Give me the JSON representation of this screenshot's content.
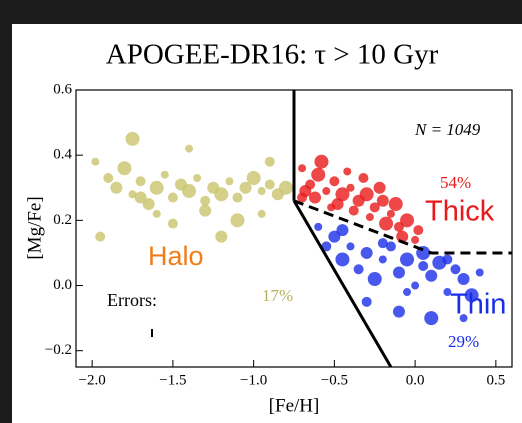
{
  "chart_data": {
    "type": "scatter",
    "title": "APOGEE-DR16: τ > 10 Gyr",
    "x_label": "[Fe/H]",
    "y_label": "[Mg/Fe]",
    "xlim": [
      -2.1,
      0.6
    ],
    "ylim": [
      -0.25,
      0.6
    ],
    "xticks": [
      {
        "value": -2.0,
        "label": "−2.0"
      },
      {
        "value": -1.5,
        "label": "−1.5"
      },
      {
        "value": -1.0,
        "label": "−1.0"
      },
      {
        "value": -0.5,
        "label": "−0.5"
      },
      {
        "value": 0.0,
        "label": "0.0"
      },
      0.5
    ],
    "yticks": [
      {
        "value": -0.2,
        "label": "−0.2"
      },
      {
        "value": 0.0,
        "label": "0.0"
      },
      0.2,
      0.4,
      0.6
    ],
    "annotations": [
      "N = 1049",
      "54%",
      "Thick",
      "Halo",
      "17%",
      "Errors:",
      "Thin",
      "29%"
    ],
    "boundaries": [
      {
        "x": [
          -0.75,
          -0.75
        ],
        "y": [
          0.6,
          0.26
        ],
        "style": "solid"
      },
      {
        "x": [
          -0.75,
          -0.15
        ],
        "y": [
          0.26,
          -0.25
        ],
        "style": "solid"
      },
      {
        "x": [
          -0.75,
          0.1,
          0.6
        ],
        "y": [
          0.26,
          0.1,
          0.1
        ],
        "style": "dashed"
      }
    ],
    "series": [
      {
        "color": "#c9c46c",
        "x": [
          -1.98,
          -1.9,
          -1.85,
          -1.8,
          -1.75,
          -1.7,
          -1.65,
          -1.6,
          -1.55,
          -1.5,
          -1.45,
          -1.4,
          -1.35,
          -1.3,
          -1.25,
          -1.2,
          -1.15,
          -1.1,
          -1.05,
          -1.0,
          -0.95,
          -0.9,
          -0.85,
          -0.8,
          -1.6,
          -1.5,
          -1.3,
          -1.1,
          -0.95,
          -1.95,
          -1.2,
          -1.75,
          -1.4,
          -0.9,
          -1.7
        ],
        "y": [
          0.38,
          0.33,
          0.3,
          0.36,
          0.28,
          0.32,
          0.25,
          0.3,
          0.34,
          0.27,
          0.31,
          0.29,
          0.33,
          0.26,
          0.3,
          0.28,
          0.32,
          0.27,
          0.3,
          0.33,
          0.29,
          0.31,
          0.28,
          0.3,
          0.22,
          0.19,
          0.23,
          0.2,
          0.22,
          0.15,
          0.15,
          0.45,
          0.42,
          0.38,
          0.27
        ]
      },
      {
        "color": "#e8191a",
        "x": [
          -0.7,
          -0.65,
          -0.62,
          -0.6,
          -0.55,
          -0.5,
          -0.48,
          -0.45,
          -0.4,
          -0.38,
          -0.35,
          -0.3,
          -0.28,
          -0.25,
          -0.2,
          -0.18,
          -0.15,
          -0.1,
          -0.08,
          -0.05,
          0.0,
          0.02,
          -0.68,
          -0.58,
          -0.42,
          -0.32,
          -0.22,
          -0.12,
          -0.52,
          -0.7
        ],
        "y": [
          0.36,
          0.31,
          0.27,
          0.34,
          0.29,
          0.32,
          0.25,
          0.28,
          0.3,
          0.23,
          0.26,
          0.28,
          0.21,
          0.24,
          0.26,
          0.19,
          0.22,
          0.18,
          0.15,
          0.2,
          0.14,
          0.17,
          0.29,
          0.38,
          0.35,
          0.33,
          0.3,
          0.25,
          0.24,
          0.27
        ]
      },
      {
        "color": "#1a2ee8",
        "x": [
          -0.6,
          -0.55,
          -0.5,
          -0.45,
          -0.4,
          -0.35,
          -0.3,
          -0.25,
          -0.2,
          -0.15,
          -0.1,
          -0.05,
          0.0,
          0.05,
          0.1,
          0.15,
          0.2,
          0.25,
          0.3,
          0.35,
          0.4,
          -0.3,
          -0.1,
          0.1,
          0.3,
          -0.2,
          -0.45,
          0.05,
          -0.05,
          0.2
        ],
        "y": [
          0.18,
          0.12,
          0.15,
          0.08,
          0.12,
          0.05,
          0.1,
          0.02,
          0.08,
          0.12,
          0.04,
          0.08,
          0.0,
          0.06,
          0.03,
          0.07,
          -0.02,
          0.05,
          0.02,
          -0.03,
          0.04,
          -0.05,
          -0.08,
          -0.1,
          -0.1,
          0.13,
          0.17,
          0.1,
          -0.02,
          0.08
        ]
      }
    ]
  }
}
